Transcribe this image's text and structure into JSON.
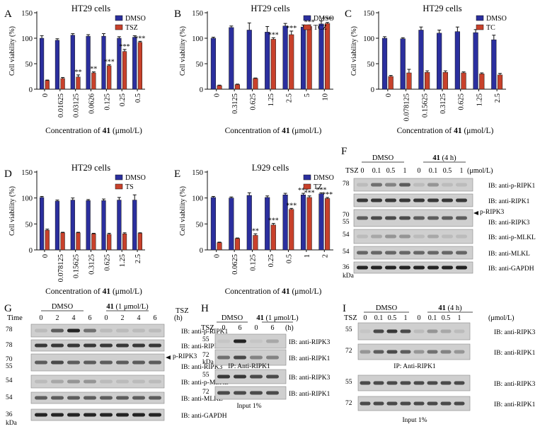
{
  "colors": {
    "dmso": "#2b2f9e",
    "treat": "#c8412b",
    "bar_outline": "#111111"
  },
  "charts": [
    {
      "letter": "A",
      "type": "bar",
      "title": "HT29 cells",
      "categories": [
        "0",
        "0.01625",
        "0.03125",
        "0.0626",
        "0.125",
        "0.25",
        "0.5"
      ],
      "series": [
        {
          "name": "DMSO",
          "values": [
            100,
            96,
            106,
            104,
            104,
            100,
            102
          ],
          "errors": [
            5,
            3,
            3,
            3,
            5,
            3,
            3
          ]
        },
        {
          "name": "TSZ",
          "values": [
            17,
            21,
            24,
            32,
            46,
            74,
            92
          ],
          "errors": [
            1,
            2,
            4,
            2,
            2,
            4,
            2
          ],
          "stars": [
            "",
            "",
            "**",
            "**",
            "***",
            "***",
            "***"
          ]
        }
      ],
      "ylabel": "Cell viability (%)",
      "xlabel_prefix": "Concentration of ",
      "xlabel_bold": "41",
      "xlabel_suffix": " (μmol/L)",
      "yticks": [
        "0",
        "50",
        "100",
        "150"
      ],
      "ylim": [
        0,
        150
      ],
      "legend": "top-right"
    },
    {
      "letter": "B",
      "type": "bar",
      "title": "HT29 cells",
      "categories": [
        "0",
        "0.3125",
        "0.625",
        "1.25",
        "2.5",
        "5",
        "10"
      ],
      "series": [
        {
          "name": "DMSO",
          "values": [
            100,
            121,
            116,
            112,
            124,
            122,
            128
          ],
          "errors": [
            2,
            3,
            14,
            11,
            5,
            4,
            6
          ]
        },
        {
          "name": "TCZ",
          "values": [
            7,
            9,
            21,
            98,
            107,
            123,
            129
          ],
          "errors": [
            1,
            1,
            1,
            3,
            7,
            3,
            2
          ],
          "stars": [
            "",
            "",
            "",
            "***",
            "***",
            "***",
            "***"
          ]
        }
      ],
      "ylabel": "Cell viability (%)",
      "xlabel_prefix": "Concentration of ",
      "xlabel_bold": "41",
      "xlabel_suffix": " (μmol/L)",
      "yticks": [
        "0",
        "50",
        "100",
        "150"
      ],
      "ylim": [
        0,
        150
      ],
      "legend": "top-right"
    },
    {
      "letter": "C",
      "type": "bar",
      "title": "HT29 cells",
      "categories": [
        "0",
        "0.078125",
        "0.15625",
        "0.3125",
        "0.625",
        "1.25",
        "2.5"
      ],
      "series": [
        {
          "name": "DMSO",
          "values": [
            100,
            99,
            116,
            110,
            113,
            111,
            97
          ],
          "errors": [
            3,
            2,
            6,
            6,
            9,
            6,
            9
          ]
        },
        {
          "name": "TC",
          "values": [
            25,
            32,
            33,
            33,
            32,
            30,
            28
          ],
          "errors": [
            2,
            7,
            3,
            3,
            2,
            2,
            3
          ],
          "stars": [
            "",
            "",
            "",
            "",
            "",
            "",
            ""
          ]
        }
      ],
      "ylabel": "Cell viability (%)",
      "xlabel_prefix": "Concentration of ",
      "xlabel_bold": "41",
      "xlabel_suffix": " (μmol/L)",
      "yticks": [
        "0",
        "50",
        "100",
        "150"
      ],
      "ylim": [
        0,
        150
      ],
      "legend": "top-right"
    },
    {
      "letter": "D",
      "type": "bar",
      "title": "HT29 cells",
      "categories": [
        "0",
        "0.078125",
        "0.15625",
        "0.3125",
        "0.625",
        "1.25",
        "2.5"
      ],
      "series": [
        {
          "name": "DMSO",
          "values": [
            101,
            94,
            96,
            95,
            95,
            96,
            96
          ],
          "errors": [
            2,
            2,
            4,
            2,
            3,
            5,
            10
          ]
        },
        {
          "name": "TS",
          "values": [
            38,
            33,
            33,
            31,
            30,
            31,
            32
          ],
          "errors": [
            2,
            1,
            1,
            1,
            2,
            2,
            1
          ],
          "stars": [
            "",
            "",
            "",
            "",
            "",
            "",
            ""
          ]
        }
      ],
      "ylabel": "Cell viability (%)",
      "xlabel_prefix": "Concentration of ",
      "xlabel_bold": "41",
      "xlabel_suffix": " (μmol/L)",
      "yticks": [
        "0",
        "50",
        "100",
        "150"
      ],
      "ylim": [
        0,
        150
      ],
      "legend": "top-right"
    },
    {
      "letter": "E",
      "type": "bar",
      "title": "L929 cells",
      "categories": [
        "0",
        "0.0625",
        "0.125",
        "0.25",
        "0.5",
        "1",
        "2"
      ],
      "series": [
        {
          "name": "DMSO",
          "values": [
            101,
            100,
            105,
            101,
            106,
            106,
            108
          ],
          "errors": [
            2,
            2,
            5,
            3,
            3,
            3,
            2
          ],
          "stars": [
            "",
            "",
            "",
            "",
            "",
            "***",
            "***"
          ]
        },
        {
          "name": "TZ",
          "values": [
            14,
            22,
            28,
            48,
            78,
            101,
            99
          ],
          "errors": [
            1,
            1,
            3,
            3,
            2,
            3,
            2
          ],
          "stars": [
            "",
            "",
            "**",
            "***",
            "***",
            "***",
            "***"
          ]
        }
      ],
      "ylabel": "Cell viability (%)",
      "xlabel_prefix": "Concentration of ",
      "xlabel_bold": "41",
      "xlabel_suffix": " (μmol/L)",
      "yticks": [
        "0",
        "50",
        "100",
        "150"
      ],
      "ylim": [
        0,
        150
      ],
      "legend": "top-right"
    }
  ],
  "blots": {
    "F": {
      "letter": "F",
      "group1": "DMSO",
      "group2_bold": "41",
      "group2_rest": " (4 h)",
      "row_label": "TSZ",
      "lanes": [
        "0",
        "0.1",
        "0.5",
        "1",
        "0",
        "0.1",
        "0.5",
        "1"
      ],
      "unit": "(μmol/L)",
      "rows": [
        {
          "mw": "78",
          "label": "IB: anti-p-RIPK1"
        },
        {
          "mw": "",
          "label": "IB: anti-RIPK1"
        },
        {
          "mw": "70\n55",
          "label": "IB: anti-RIPK3",
          "arrow": "p-RIPK3"
        },
        {
          "mw": "54",
          "label": "IB: anti-p-MLKL"
        },
        {
          "mw": "54",
          "label": "IB: anti-MLKL"
        },
        {
          "mw": "36",
          "label": "IB: anti-GAPDH"
        }
      ],
      "kda": "kDa"
    },
    "G": {
      "letter": "G",
      "group1": "DMSO",
      "group2_bold": "41",
      "group2_rest": " (1 μmol/L)",
      "row_label": "Time",
      "corner": "TSZ",
      "lanes": [
        "0",
        "2",
        "4",
        "6",
        "0",
        "2",
        "4",
        "6"
      ],
      "unit": "(h)",
      "rows": [
        {
          "mw": "78",
          "label": "IB: anti-p-RIPK1"
        },
        {
          "mw": "78",
          "label": "IB: anti-RIPK1"
        },
        {
          "mw": "70\n55",
          "label": "IB: anti-RIPK3",
          "arrow": "p-RIPK3"
        },
        {
          "mw": "54",
          "label": "IB: anti-p-MLKL"
        },
        {
          "mw": "54",
          "label": "IB: anti-MLKL"
        },
        {
          "mw": "36",
          "label": "IB: anti-GAPDH"
        }
      ],
      "kda": "kDa"
    },
    "H": {
      "letter": "H",
      "group1": "DMSO",
      "group2_bold": "41",
      "group2_rest": " (1 μmol/L)",
      "row_label": "TSZ",
      "lanes": [
        "0",
        "6",
        "0",
        "6"
      ],
      "unit": "(h)",
      "rows": [
        {
          "mw": "55",
          "label": "IB: anti-RIPK3"
        },
        {
          "mw": "72\nkDa",
          "label": "IB: anti-RIPK1"
        },
        {
          "mw": "55",
          "label": "IB: anti-RIPK3"
        },
        {
          "mw": "72",
          "label": "IB: anti-RIPK1"
        }
      ],
      "ip_caption": "IP: Anti-RIPK1",
      "input_caption": "Input 1%"
    },
    "I": {
      "letter": "I",
      "group1": "DMSO",
      "group2_bold": "41",
      "group2_rest": " (4 h)",
      "row_label": "TSZ",
      "lanes": [
        "0",
        "0.1",
        "0.5",
        "1",
        "0",
        "0.1",
        "0.5",
        "1"
      ],
      "unit": "(μmol/L)",
      "rows": [
        {
          "mw": "55",
          "label": "IB: anti-RIPK3"
        },
        {
          "mw": "72",
          "label": "IB: anti-RIPK1"
        },
        {
          "mw": "55",
          "label": "IB: anti-RIPK3"
        },
        {
          "mw": "72",
          "label": "IB: anti-RIPK1"
        }
      ],
      "ip_caption": "IP: Anti-RIPK1",
      "input_caption": "Input 1%"
    }
  }
}
